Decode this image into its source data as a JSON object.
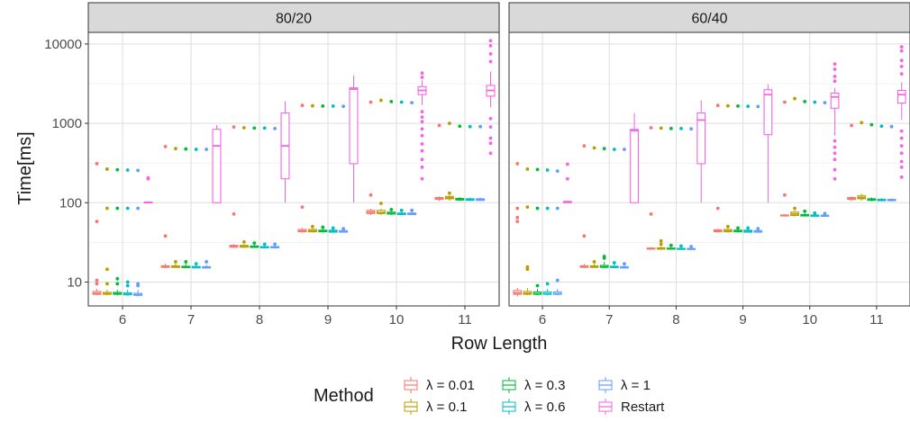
{
  "chart_data": {
    "type": "boxplot",
    "xlabel": "Row Length",
    "ylabel": "Time[ms]",
    "y_scale": "log10",
    "ylim": [
      5,
      14000
    ],
    "y_ticks": [
      10,
      100,
      1000,
      10000
    ],
    "y_tick_labels": [
      "10",
      "100",
      "1000",
      "10000"
    ],
    "categories": [
      "6",
      "7",
      "8",
      "9",
      "10",
      "11"
    ],
    "grid": true,
    "legend": {
      "title": "Method",
      "position": "bottom",
      "entries": [
        {
          "key": "l001",
          "label": "λ = 0.01",
          "color": "#F8766D"
        },
        {
          "key": "l01",
          "label": "λ = 0.1",
          "color": "#B79F00"
        },
        {
          "key": "l03",
          "label": "λ = 0.3",
          "color": "#00BA38"
        },
        {
          "key": "l06",
          "label": "λ = 0.6",
          "color": "#00BFC4"
        },
        {
          "key": "l1",
          "label": "λ = 1",
          "color": "#619CFF"
        },
        {
          "key": "restart",
          "label": "Restart",
          "color": "#F564E3"
        }
      ]
    },
    "panels": [
      {
        "strip": "80/20",
        "groups": {
          "6": {
            "l001": {
              "lo": 6.8,
              "q1": 7.0,
              "med": 7.2,
              "q3": 7.6,
              "hi": 8.2,
              "out": [
                10.5,
                9.5,
                58,
                310
              ]
            },
            "l01": {
              "lo": 6.8,
              "q1": 7.0,
              "med": 7.1,
              "q3": 7.4,
              "hi": 8.0,
              "out": [
                9.5,
                14.5,
                85,
                265
              ]
            },
            "l03": {
              "lo": 6.8,
              "q1": 7.0,
              "med": 7.1,
              "q3": 7.4,
              "hi": 8.0,
              "out": [
                9.5,
                11,
                85,
                260
              ]
            },
            "l06": {
              "lo": 6.7,
              "q1": 6.9,
              "med": 7.0,
              "q3": 7.3,
              "hi": 8.0,
              "out": [
                9.0,
                10,
                85,
                258
              ]
            },
            "l1": {
              "lo": 6.6,
              "q1": 6.8,
              "med": 6.9,
              "q3": 7.2,
              "hi": 8.0,
              "out": [
                9.0,
                9.5,
                85,
                255
              ]
            },
            "restart": {
              "lo": 100,
              "q1": 100,
              "med": 101,
              "q3": 102,
              "hi": 103,
              "out": [
                200,
                205
              ]
            }
          },
          "7": {
            "l001": {
              "lo": 15,
              "q1": 15.3,
              "med": 15.6,
              "q3": 16.0,
              "hi": 17,
              "out": [
                38,
                510
              ]
            },
            "l01": {
              "lo": 15,
              "q1": 15.3,
              "med": 15.5,
              "q3": 16.0,
              "hi": 17,
              "out": [
                18,
                480
              ]
            },
            "l03": {
              "lo": 15,
              "q1": 15.2,
              "med": 15.4,
              "q3": 15.8,
              "hi": 17,
              "out": [
                18,
                475
              ]
            },
            "l06": {
              "lo": 15,
              "q1": 15.1,
              "med": 15.3,
              "q3": 15.7,
              "hi": 16.5,
              "out": [
                17,
                470
              ]
            },
            "l1": {
              "lo": 15,
              "q1": 15.1,
              "med": 15.2,
              "q3": 15.6,
              "hi": 16.5,
              "out": [
                18,
                470
              ]
            },
            "restart": {
              "lo": 100,
              "q1": 100,
              "med": 520,
              "q3": 840,
              "hi": 950,
              "out": []
            }
          },
          "8": {
            "l001": {
              "lo": 27,
              "q1": 27.5,
              "med": 28,
              "q3": 29,
              "hi": 30,
              "out": [
                72,
                900
              ]
            },
            "l01": {
              "lo": 27,
              "q1": 27.5,
              "med": 28,
              "q3": 29,
              "hi": 30,
              "out": [
                32,
                880
              ]
            },
            "l03": {
              "lo": 27,
              "q1": 27.3,
              "med": 27.8,
              "q3": 28.5,
              "hi": 30,
              "out": [
                31,
                870
              ]
            },
            "l06": {
              "lo": 26.5,
              "q1": 27,
              "med": 27.5,
              "q3": 28,
              "hi": 29.5,
              "out": [
                30,
                870
              ]
            },
            "l1": {
              "lo": 26.5,
              "q1": 27,
              "med": 27.3,
              "q3": 28,
              "hi": 29.5,
              "out": [
                30,
                860
              ]
            },
            "restart": {
              "lo": 100,
              "q1": 200,
              "med": 520,
              "q3": 1350,
              "hi": 1900,
              "out": []
            }
          },
          "9": {
            "l001": {
              "lo": 42,
              "q1": 43,
              "med": 44,
              "q3": 46,
              "hi": 48,
              "out": [
                88,
                1680
              ]
            },
            "l01": {
              "lo": 42,
              "q1": 43,
              "med": 44,
              "q3": 46,
              "hi": 48,
              "out": [
                50,
                1660
              ]
            },
            "l03": {
              "lo": 42,
              "q1": 43,
              "med": 44,
              "q3": 45,
              "hi": 47,
              "out": [
                49,
                1650
              ]
            },
            "l06": {
              "lo": 42,
              "q1": 42.5,
              "med": 43.5,
              "q3": 45,
              "hi": 47,
              "out": [
                48,
                1650
              ]
            },
            "l1": {
              "lo": 42,
              "q1": 42.5,
              "med": 43,
              "q3": 44.5,
              "hi": 46,
              "out": [
                47,
                1640
              ]
            },
            "restart": {
              "lo": 100,
              "q1": 310,
              "med": 2700,
              "q3": 2800,
              "hi": 4000,
              "out": []
            }
          },
          "10": {
            "l001": {
              "lo": 70,
              "q1": 73,
              "med": 76,
              "q3": 80,
              "hi": 84,
              "out": [
                125,
                1850
              ]
            },
            "l01": {
              "lo": 70,
              "q1": 73,
              "med": 75,
              "q3": 80,
              "hi": 84,
              "out": [
                98,
                1950
              ]
            },
            "l03": {
              "lo": 70,
              "q1": 72,
              "med": 73,
              "q3": 76,
              "hi": 80,
              "out": [
                82,
                1880
              ]
            },
            "l06": {
              "lo": 70,
              "q1": 71,
              "med": 72,
              "q3": 74,
              "hi": 78,
              "out": [
                80,
                1850
              ]
            },
            "l1": {
              "lo": 70,
              "q1": 71,
              "med": 72,
              "q3": 74,
              "hi": 78,
              "out": [
                80,
                1820
              ]
            },
            "restart": {
              "lo": 1700,
              "q1": 2300,
              "med": 2600,
              "q3": 2900,
              "hi": 3500,
              "out": [
                200,
                280,
                350,
                450,
                550,
                700,
                850,
                1050,
                1200,
                1400,
                3800,
                4300
              ]
            }
          },
          "11": {
            "l001": {
              "lo": 105,
              "q1": 110,
              "med": 112,
              "q3": 116,
              "hi": 120,
              "out": [
                940
              ]
            },
            "l01": {
              "lo": 106,
              "q1": 112,
              "med": 115,
              "q3": 120,
              "hi": 125,
              "out": [
                1000,
                132
              ]
            },
            "l03": {
              "lo": 105,
              "q1": 108,
              "med": 110,
              "q3": 113,
              "hi": 118,
              "out": [
                920
              ]
            },
            "l06": {
              "lo": 105,
              "q1": 107,
              "med": 109,
              "q3": 112,
              "hi": 116,
              "out": [
                910
              ]
            },
            "l1": {
              "lo": 105,
              "q1": 107,
              "med": 109,
              "q3": 112,
              "hi": 116,
              "out": [
                910
              ]
            },
            "restart": {
              "lo": 1600,
              "q1": 2200,
              "med": 2600,
              "q3": 3000,
              "hi": 4500,
              "out": [
                420,
                560,
                650,
                900,
                1150,
                6000,
                7500,
                9500,
                11000
              ]
            }
          }
        }
      },
      {
        "strip": "60/40",
        "groups": {
          "6": {
            "l001": {
              "lo": 6.6,
              "q1": 7.0,
              "med": 7.3,
              "q3": 7.8,
              "hi": 8.4,
              "out": [
                58,
                65,
                85,
                310
              ]
            },
            "l01": {
              "lo": 6.8,
              "q1": 7.0,
              "med": 7.2,
              "q3": 7.6,
              "hi": 8.4,
              "out": [
                14.5,
                15.5,
                88,
                265
              ]
            },
            "l03": {
              "lo": 6.8,
              "q1": 7.0,
              "med": 7.1,
              "q3": 7.5,
              "hi": 8.2,
              "out": [
                9.0,
                85,
                262
              ]
            },
            "l06": {
              "lo": 6.8,
              "q1": 7.0,
              "med": 7.1,
              "q3": 7.5,
              "hi": 8.2,
              "out": [
                9.5,
                85,
                258
              ]
            },
            "l1": {
              "lo": 6.8,
              "q1": 7.0,
              "med": 7.1,
              "q3": 7.5,
              "hi": 8.2,
              "out": [
                10.5,
                85,
                250
              ]
            },
            "restart": {
              "lo": 100,
              "q1": 100,
              "med": 102,
              "q3": 104,
              "hi": 105,
              "out": [
                200,
                305
              ]
            }
          },
          "7": {
            "l001": {
              "lo": 15,
              "q1": 15.3,
              "med": 15.6,
              "q3": 16.0,
              "hi": 17,
              "out": [
                38,
                520
              ]
            },
            "l01": {
              "lo": 15,
              "q1": 15.3,
              "med": 15.5,
              "q3": 16.0,
              "hi": 17,
              "out": [
                18,
                490
              ]
            },
            "l03": {
              "lo": 15,
              "q1": 15.3,
              "med": 15.5,
              "q3": 16.2,
              "hi": 18,
              "out": [
                20,
                21,
                480
              ]
            },
            "l06": {
              "lo": 15,
              "q1": 15.2,
              "med": 15.4,
              "q3": 15.8,
              "hi": 17,
              "out": [
                17.5,
                470
              ]
            },
            "l1": {
              "lo": 15,
              "q1": 15.1,
              "med": 15.2,
              "q3": 15.6,
              "hi": 16.5,
              "out": [
                17,
                470
              ]
            },
            "restart": {
              "lo": 100,
              "q1": 100,
              "med": 810,
              "q3": 840,
              "hi": 1350,
              "out": []
            }
          },
          "8": {
            "l001": {
              "lo": 25.5,
              "q1": 26,
              "med": 26.3,
              "q3": 26.8,
              "hi": 27.5,
              "out": [
                72,
                880
              ]
            },
            "l01": {
              "lo": 25.5,
              "q1": 26,
              "med": 26.3,
              "q3": 27,
              "hi": 28.5,
              "out": [
                30,
                33,
                870
              ]
            },
            "l03": {
              "lo": 25.5,
              "q1": 26,
              "med": 26.2,
              "q3": 26.8,
              "hi": 28,
              "out": [
                29,
                860
              ]
            },
            "l06": {
              "lo": 25.5,
              "q1": 25.8,
              "med": 26.1,
              "q3": 26.6,
              "hi": 27.5,
              "out": [
                28.5,
                860
              ]
            },
            "l1": {
              "lo": 25.5,
              "q1": 25.8,
              "med": 26,
              "q3": 26.5,
              "hi": 27.5,
              "out": [
                28,
                850
              ]
            },
            "restart": {
              "lo": 100,
              "q1": 310,
              "med": 1100,
              "q3": 1350,
              "hi": 1950,
              "out": []
            }
          },
          "9": {
            "l001": {
              "lo": 42,
              "q1": 43,
              "med": 44,
              "q3": 45.5,
              "hi": 47,
              "out": [
                85,
                1680
              ]
            },
            "l01": {
              "lo": 42,
              "q1": 43,
              "med": 44,
              "q3": 46,
              "hi": 48,
              "out": [
                50,
                1660
              ]
            },
            "l03": {
              "lo": 42,
              "q1": 43,
              "med": 43.5,
              "q3": 45,
              "hi": 47,
              "out": [
                48,
                1650
              ]
            },
            "l06": {
              "lo": 42,
              "q1": 42.5,
              "med": 43.5,
              "q3": 45,
              "hi": 47,
              "out": [
                48,
                1640
              ]
            },
            "l1": {
              "lo": 42,
              "q1": 42.5,
              "med": 43,
              "q3": 44.5,
              "hi": 46,
              "out": [
                47,
                1630
              ]
            },
            "restart": {
              "lo": 100,
              "q1": 720,
              "med": 2300,
              "q3": 2650,
              "hi": 3100,
              "out": []
            }
          },
          "10": {
            "l001": {
              "lo": 67,
              "q1": 68,
              "med": 69,
              "q3": 70,
              "hi": 72,
              "out": [
                125,
                1850
              ]
            },
            "l01": {
              "lo": 67,
              "q1": 69,
              "med": 72,
              "q3": 76,
              "hi": 80,
              "out": [
                85,
                2050
              ]
            },
            "l03": {
              "lo": 67,
              "q1": 68,
              "med": 69,
              "q3": 71,
              "hi": 74,
              "out": [
                78,
                1880
              ]
            },
            "l06": {
              "lo": 67,
              "q1": 67.5,
              "med": 68.5,
              "q3": 70,
              "hi": 72,
              "out": [
                74,
                1850
              ]
            },
            "l1": {
              "lo": 67,
              "q1": 67.5,
              "med": 68,
              "q3": 69.5,
              "hi": 72,
              "out": [
                73,
                1820
              ]
            },
            "restart": {
              "lo": 700,
              "q1": 1550,
              "med": 2150,
              "q3": 2400,
              "hi": 2800,
              "out": [
                200,
                260,
                350,
                420,
                500,
                600,
                3400,
                3900,
                4800,
                5600
              ]
            }
          },
          "11": {
            "l001": {
              "lo": 105,
              "q1": 110,
              "med": 113,
              "q3": 116,
              "hi": 120,
              "out": [
                940
              ]
            },
            "l01": {
              "lo": 106,
              "q1": 112,
              "med": 116,
              "q3": 122,
              "hi": 130,
              "out": [
                1020
              ]
            },
            "l03": {
              "lo": 104,
              "q1": 107,
              "med": 109,
              "q3": 112,
              "hi": 117,
              "out": [
                960
              ]
            },
            "l06": {
              "lo": 104,
              "q1": 106,
              "med": 108,
              "q3": 110,
              "hi": 114,
              "out": [
                920
              ]
            },
            "l1": {
              "lo": 104,
              "q1": 106,
              "med": 108,
              "q3": 110,
              "hi": 113,
              "out": [
                910
              ]
            },
            "restart": {
              "lo": 1100,
              "q1": 1800,
              "med": 2300,
              "q3": 2600,
              "hi": 3300,
              "out": [
                210,
                280,
                330,
                420,
                520,
                650,
                800,
                4200,
                5200,
                6200,
                8200,
                9200
              ]
            }
          }
        }
      }
    ]
  }
}
